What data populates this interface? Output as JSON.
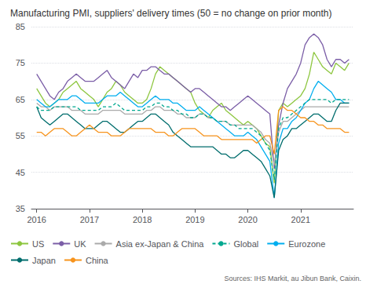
{
  "chart_data": {
    "type": "line",
    "title": "Manufacturing PMI, suppliers' delivery times (50 = no change on prior month)",
    "annotations": [
      "Sources: IHS Markit, au Jibun Bank, Caixin."
    ],
    "x": [
      2016,
      2016.0833333333333,
      2016.1666666666667,
      2016.25,
      2016.3333333333333,
      2016.4166666666667,
      2016.5,
      2016.5833333333333,
      2016.6666666666667,
      2016.75,
      2016.8333333333333,
      2016.9166666666667,
      2017,
      2017.0833333333333,
      2017.1666666666667,
      2017.25,
      2017.3333333333333,
      2017.4166666666667,
      2017.5,
      2017.5833333333333,
      2017.6666666666667,
      2017.75,
      2017.8333333333333,
      2017.9166666666667,
      2018,
      2018.0833333333333,
      2018.1666666666667,
      2018.25,
      2018.3333333333333,
      2018.4166666666667,
      2018.5,
      2018.5833333333333,
      2018.6666666666667,
      2018.75,
      2018.8333333333333,
      2018.9166666666667,
      2019,
      2019.0833333333333,
      2019.1666666666667,
      2019.25,
      2019.3333333333333,
      2019.4166666666667,
      2019.5,
      2019.5833333333333,
      2019.6666666666667,
      2019.75,
      2019.8333333333333,
      2019.9166666666667,
      2020,
      2020.0833333333333,
      2020.1666666666667,
      2020.25,
      2020.3333333333333,
      2020.4166666666667,
      2020.5,
      2020.5833333333333,
      2020.6666666666667,
      2020.75,
      2020.8333333333333,
      2020.9166666666667,
      2021,
      2021.0833333333333,
      2021.1666666666667,
      2021.25,
      2021.3333333333333,
      2021.4166666666667,
      2021.5,
      2021.5833333333333,
      2021.6666666666667,
      2021.75,
      2021.8333333333333,
      2021.9166666666667
    ],
    "xlim": [
      2015.9,
      2022.0
    ],
    "xticks": [
      2016,
      2017,
      2018,
      2019,
      2020,
      2021
    ],
    "ylim": [
      35,
      85
    ],
    "yticks": [
      35,
      45,
      55,
      65,
      75,
      85
    ],
    "grid": true,
    "legend": "lower left",
    "series": [
      {
        "name": "US",
        "color": "#8dc63f",
        "line_style": "solid",
        "values": [
          68,
          66,
          64,
          63,
          64,
          65,
          67,
          68,
          69,
          70,
          68,
          67,
          66,
          65,
          63,
          65,
          67,
          68,
          70,
          69,
          67,
          66,
          65,
          64,
          64,
          65,
          68,
          72,
          74,
          73,
          72,
          71,
          70,
          69,
          68,
          67,
          64,
          62,
          61,
          60,
          62,
          63,
          64,
          62,
          61,
          60,
          59,
          58,
          59,
          58,
          57,
          55,
          53,
          52,
          42,
          62,
          64,
          63,
          64,
          65,
          66,
          68,
          72,
          78,
          76,
          74,
          73,
          72,
          75,
          74,
          73,
          75
        ]
      },
      {
        "name": "UK",
        "color": "#7b5ea7",
        "line_style": "solid",
        "values": [
          72,
          70,
          68,
          66,
          65,
          67,
          68,
          70,
          71,
          72,
          71,
          70,
          70,
          70,
          71,
          72,
          73,
          71,
          70,
          69,
          68,
          70,
          72,
          71,
          73,
          73,
          74,
          74,
          73,
          72,
          72,
          71,
          70,
          69,
          68,
          67,
          68,
          68,
          67,
          66,
          65,
          64,
          63,
          63,
          62,
          63,
          64,
          65,
          66,
          65,
          64,
          63,
          62,
          61,
          46,
          58,
          64,
          68,
          70,
          72,
          75,
          80,
          82,
          83,
          82,
          80,
          76,
          74,
          76,
          76,
          75,
          76
        ]
      },
      {
        "name": "Asia ex-Japan & China",
        "color": "#aaaaaa",
        "line_style": "solid",
        "values": [
          64,
          63,
          63,
          62,
          63,
          63,
          63,
          63,
          62,
          62,
          62,
          61,
          61,
          61,
          61,
          62,
          62,
          62,
          62,
          62,
          61,
          61,
          61,
          61,
          61,
          62,
          62,
          63,
          63,
          62,
          62,
          62,
          61,
          61,
          60,
          60,
          60,
          61,
          61,
          60,
          60,
          59,
          59,
          59,
          58,
          58,
          58,
          58,
          58,
          58,
          57,
          56,
          54,
          53,
          47,
          56,
          59,
          59,
          60,
          61,
          62,
          63,
          63,
          63,
          63,
          63,
          63,
          63,
          63,
          63,
          63,
          63
        ]
      },
      {
        "name": "Global",
        "color": "#00a88f",
        "line_style": "dashed",
        "values": [
          63,
          62,
          62,
          62,
          63,
          63,
          63,
          63,
          63,
          63,
          62,
          62,
          62,
          62,
          62,
          63,
          63,
          63,
          64,
          63,
          62,
          62,
          62,
          62,
          62,
          63,
          63,
          64,
          64,
          63,
          63,
          62,
          62,
          61,
          61,
          60,
          60,
          61,
          61,
          60,
          60,
          59,
          59,
          59,
          58,
          58,
          57,
          57,
          57,
          57,
          56,
          55,
          53,
          51,
          43,
          57,
          60,
          60,
          61,
          62,
          63,
          64,
          65,
          65,
          65,
          65,
          65,
          64,
          65,
          65,
          65,
          65
        ]
      },
      {
        "name": "Eurozone",
        "color": "#00aeef",
        "line_style": "solid",
        "values": [
          65,
          64,
          63,
          63,
          64,
          65,
          65,
          65,
          66,
          66,
          65,
          64,
          64,
          64,
          64,
          65,
          66,
          66,
          66,
          67,
          66,
          65,
          64,
          63,
          63,
          64,
          65,
          66,
          65,
          65,
          65,
          64,
          64,
          63,
          62,
          62,
          62,
          63,
          62,
          61,
          60,
          59,
          58,
          57,
          56,
          55,
          55,
          55,
          56,
          55,
          54,
          52,
          50,
          48,
          38,
          53,
          57,
          57,
          59,
          60,
          62,
          64,
          65,
          68,
          70,
          69,
          68,
          67,
          65,
          65,
          64,
          64
        ]
      },
      {
        "name": "Japan",
        "color": "#006d6d",
        "line_style": "solid",
        "values": [
          63,
          60,
          59,
          58,
          59,
          60,
          61,
          61,
          60,
          59,
          58,
          57,
          57,
          57,
          58,
          59,
          59,
          58,
          57,
          56,
          56,
          57,
          58,
          59,
          59,
          60,
          61,
          61,
          60,
          59,
          58,
          56,
          55,
          54,
          53,
          52,
          52,
          52,
          52,
          52,
          52,
          51,
          50,
          50,
          49,
          49,
          50,
          51,
          51,
          50,
          49,
          48,
          46,
          44,
          38,
          51,
          54,
          55,
          57,
          57,
          58,
          59,
          60,
          61,
          61,
          60,
          59,
          59,
          62,
          64,
          64,
          64
        ]
      },
      {
        "name": "China",
        "color": "#f7941d",
        "line_style": "solid",
        "values": [
          56,
          56,
          55,
          56,
          57,
          57,
          57,
          56,
          55,
          55,
          56,
          57,
          58,
          57,
          56,
          56,
          56,
          55,
          55,
          55,
          56,
          57,
          57,
          57,
          57,
          57,
          57,
          56,
          56,
          56,
          55,
          55,
          56,
          57,
          57,
          57,
          57,
          56,
          55,
          55,
          55,
          55,
          54,
          54,
          54,
          54,
          54,
          54,
          54,
          54,
          53,
          54,
          55,
          55,
          50,
          62,
          63,
          62,
          62,
          61,
          60,
          60,
          59,
          59,
          58,
          58,
          57,
          57,
          57,
          57,
          56,
          56
        ]
      }
    ]
  }
}
